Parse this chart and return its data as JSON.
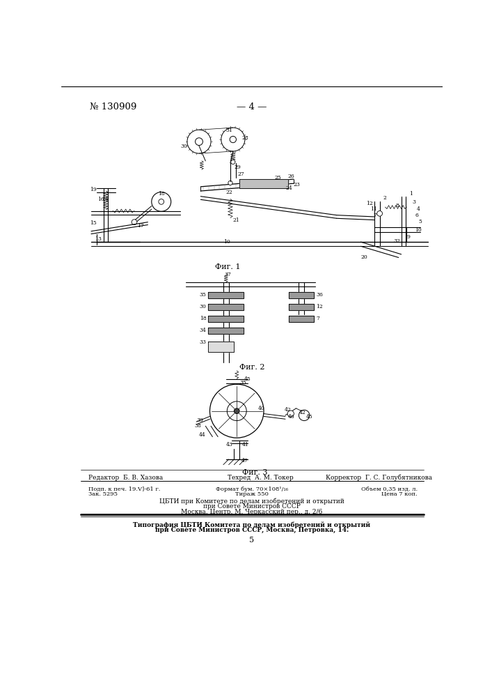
{
  "page_number_left": "№ 130909",
  "page_number_center": "— 4 —",
  "fig1_label": "Фиг. 1",
  "fig2_label": "Фиг. 2",
  "fig3_label": "Фиг. 3",
  "footer_editor": "Редактор  Б. В. Хазова",
  "footer_tech": "Техред  А. М. Токер",
  "footer_corrector": "Корректор  Г. С. Голубятникова",
  "footer_line1_left": "Подп. к печ. 19.V]-61 г.",
  "footer_line1_center": "Формат бум. 70×108¹/₁₆",
  "footer_line1_right": "Объем 0,35 изд. л.",
  "footer_line2_left": "Зак. 5295",
  "footer_line2_center": "Тираж 550",
  "footer_line2_right": "Цена 7 коп.",
  "footer_cbti1": "ЦБТИ при Комитете по делам изобретений и открытий",
  "footer_cbti2": "при Совете Министров СССР",
  "footer_cbti3": "Москва, Центр, М. Черкасский пер., д. 2/6",
  "footer_typo1": "Типография ЦБТИ Комитета по делам изобретений и открытий",
  "footer_typo2": "при Совете Министров СССР, Москва, Петровка, 14.",
  "bottom_number": "5"
}
